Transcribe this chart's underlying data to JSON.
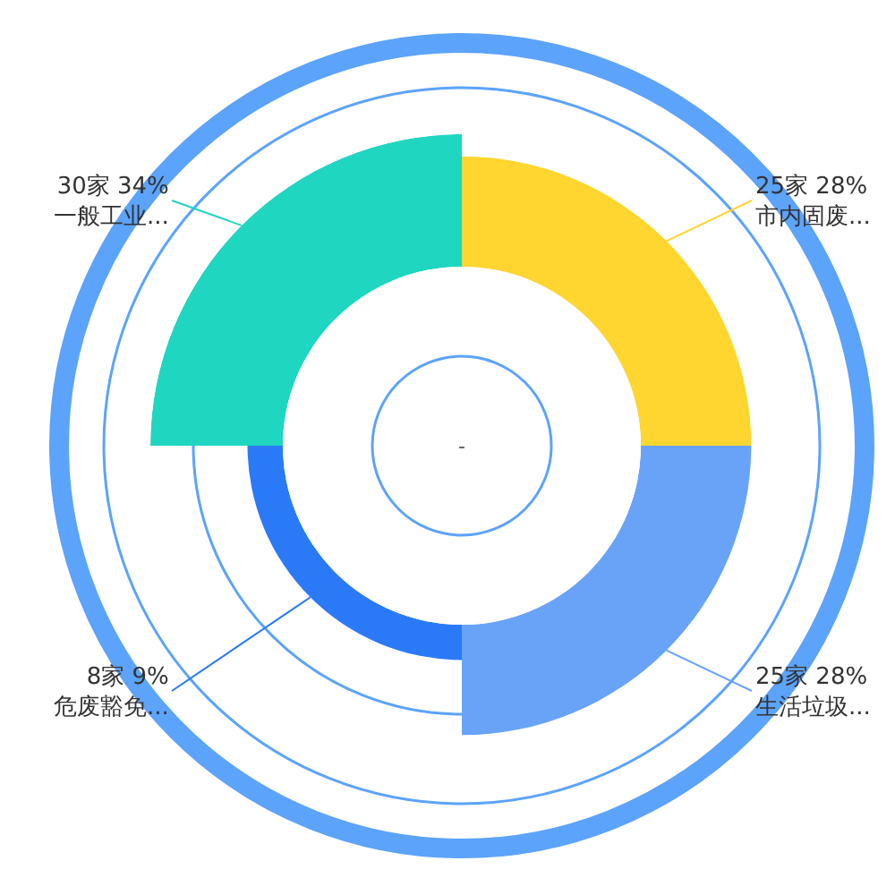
{
  "chart_data": {
    "type": "other",
    "categories": [
      "市内固废...",
      "生活垃圾...",
      "危废豁免...",
      "一般工业..."
    ],
    "values": [
      25,
      25,
      8,
      30
    ],
    "value_labels": [
      "25家 28%",
      "25家 28%",
      "8家 9%",
      "30家 34%"
    ],
    "colors": [
      "#ffd52f",
      "#68a3f8",
      "#2a7af8",
      "#1fd6c1"
    ],
    "annotations": [
      "-"
    ]
  }
}
